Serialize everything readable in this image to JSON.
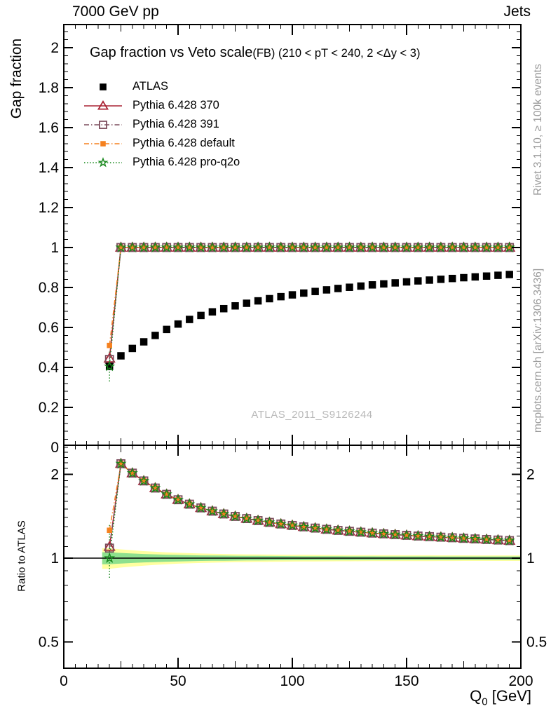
{
  "header": {
    "left": "7000 GeV pp",
    "right": "Jets"
  },
  "title": {
    "main": "Gap fraction vs Veto scale",
    "paren": "(FB) (210 < pT < 240, 2 <Δy < 3)"
  },
  "watermark": "ATLAS_2011_S9126244",
  "side_notes": {
    "top": "Rivet 3.1.10, ≥ 100k events",
    "bottom": "mcplots.cern.ch [arXiv:1306.3436]"
  },
  "axes": {
    "x_title": {
      "base": "Q",
      "sub": "0",
      "unit": " [GeV]"
    },
    "y_main_title": "Gap fraction",
    "y_ratio_title": "Ratio to ATLAS"
  },
  "chart_data": {
    "type": "line",
    "title": "Gap fraction vs Veto scale (FB) (210 < pT < 240, 2 < Δy < 3)",
    "xlabel": "Q_0 [GeV]",
    "ylabel": "Gap fraction",
    "ylabel_ratio": "Ratio to ATLAS",
    "x_range": [
      0,
      200
    ],
    "y_main_range": [
      0,
      2.11
    ],
    "y_ratio_range": [
      0.4,
      2.54
    ],
    "ratio_scale": "log",
    "grid": false,
    "legend_position": "top-left",
    "x_ticks": [
      0,
      50,
      100,
      150,
      200
    ],
    "y_main_ticks": [
      2,
      1.8,
      1.6,
      1.4,
      1.2,
      1,
      0.8,
      0.6,
      0.4,
      0.2,
      0
    ],
    "y_ratio_ticks": [
      2,
      1,
      0.5
    ],
    "x": [
      20,
      25,
      30,
      35,
      40,
      45,
      50,
      55,
      60,
      65,
      70,
      75,
      80,
      85,
      90,
      95,
      100,
      105,
      110,
      115,
      120,
      125,
      130,
      135,
      140,
      145,
      150,
      155,
      160,
      165,
      170,
      175,
      180,
      185,
      190,
      195
    ],
    "series": [
      {
        "name": "ATLAS",
        "color": "#000000",
        "marker": "filled-square",
        "line": "none",
        "values": [
          0.405,
          0.458,
          0.495,
          0.528,
          0.56,
          0.59,
          0.617,
          0.64,
          0.66,
          0.678,
          0.694,
          0.708,
          0.721,
          0.733,
          0.744,
          0.754,
          0.763,
          0.772,
          0.78,
          0.788,
          0.795,
          0.801,
          0.807,
          0.813,
          0.818,
          0.823,
          0.828,
          0.833,
          0.837,
          0.841,
          0.845,
          0.849,
          0.853,
          0.857,
          0.861,
          0.865
        ]
      },
      {
        "name": "Pythia 6.428 370",
        "color": "#aa2233",
        "marker": "open-triangle",
        "line": "solid",
        "values": [
          0.445,
          1,
          1,
          1,
          1,
          1,
          1,
          1,
          1,
          1,
          1,
          1,
          1,
          1,
          1,
          1,
          1,
          1,
          1,
          1,
          1,
          1,
          1,
          1,
          1,
          1,
          1,
          1,
          1,
          1,
          1,
          1,
          1,
          1,
          1,
          1
        ]
      },
      {
        "name": "Pythia 6.428 391",
        "color": "#7d4f5e",
        "marker": "open-square",
        "line": "dash-dot",
        "values": [
          0.44,
          1,
          1,
          1,
          1,
          1,
          1,
          1,
          1,
          1,
          1,
          1,
          1,
          1,
          1,
          1,
          1,
          1,
          1,
          1,
          1,
          1,
          1,
          1,
          1,
          1,
          1,
          1,
          1,
          1,
          1,
          1,
          1,
          1,
          1,
          1
        ]
      },
      {
        "name": "Pythia 6.428 default",
        "color": "#f5811f",
        "marker": "filled-square",
        "line": "dash-dot",
        "values": [
          0.51,
          1,
          1,
          1,
          1,
          1,
          1,
          1,
          1,
          1,
          1,
          1,
          1,
          1,
          1,
          1,
          1,
          1,
          1,
          1,
          1,
          1,
          1,
          1,
          1,
          1,
          1,
          1,
          1,
          1,
          1,
          1,
          1,
          1,
          1,
          1
        ]
      },
      {
        "name": "Pythia 6.428 pro-q2o",
        "color": "#17871b",
        "marker": "open-star",
        "line": "dotted",
        "values": [
          0.405,
          1,
          1,
          1,
          1,
          1,
          1,
          1,
          1,
          1,
          1,
          1,
          1,
          1,
          1,
          1,
          1,
          1,
          1,
          1,
          1,
          1,
          1,
          1,
          1,
          1,
          1,
          1,
          1,
          1,
          1,
          1,
          1,
          1,
          1,
          1
        ]
      }
    ],
    "ratio_reference": "ATLAS",
    "ratio_band": {
      "yellow_color": "#ffffa0",
      "green_color": "#8ee08e",
      "yellow_halfwidth": [
        0.085,
        0.075,
        0.067,
        0.06,
        0.054,
        0.049,
        0.045,
        0.042,
        0.039,
        0.037,
        0.035,
        0.033,
        0.032,
        0.031,
        0.03,
        0.029,
        0.028,
        0.0275,
        0.027,
        0.0265,
        0.026,
        0.0255,
        0.025,
        0.0248,
        0.0246,
        0.0244,
        0.0242,
        0.024,
        0.0238,
        0.0236,
        0.0234,
        0.0232,
        0.023,
        0.0229,
        0.0228,
        0.0227
      ],
      "green_halfwidth": [
        0.05,
        0.044,
        0.039,
        0.035,
        0.032,
        0.029,
        0.027,
        0.025,
        0.023,
        0.022,
        0.021,
        0.02,
        0.019,
        0.0185,
        0.018,
        0.0174,
        0.0168,
        0.0165,
        0.0162,
        0.0159,
        0.0156,
        0.0153,
        0.015,
        0.0149,
        0.0148,
        0.0147,
        0.0146,
        0.0145,
        0.0144,
        0.0143,
        0.0142,
        0.0141,
        0.014,
        0.014,
        0.0139,
        0.0139
      ]
    },
    "first_point_error_bar": {
      "x": 20,
      "main_range": [
        0.33,
        0.48
      ],
      "ratio_range": [
        0.85,
        1.33
      ]
    }
  }
}
